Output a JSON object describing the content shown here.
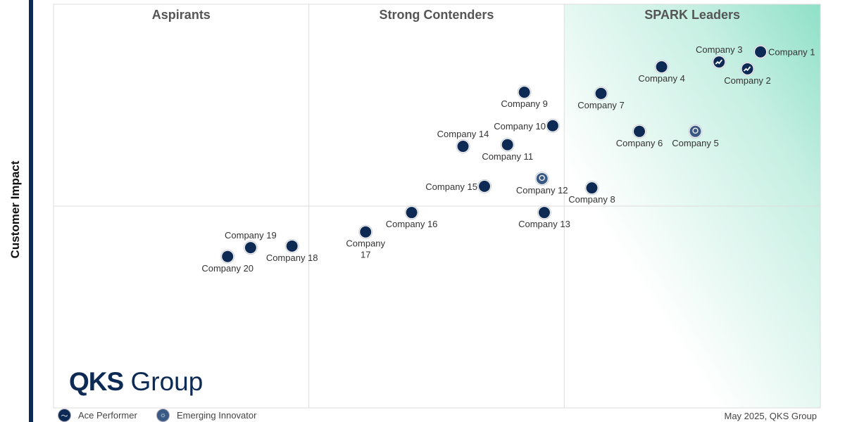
{
  "chart_data": {
    "type": "scatter",
    "title": "",
    "ylabel": "Customer Impact",
    "xlabel": "",
    "xlim": [
      0,
      100
    ],
    "ylim": [
      0,
      100
    ],
    "dividers": {
      "x": [
        33.3,
        66.6
      ],
      "y": 50
    },
    "quadrants": [
      "Aspirants",
      "Strong Contenders",
      "SPARK Leaders"
    ],
    "legend": [
      {
        "name": "Ace Performer",
        "icon": "trend-icon"
      },
      {
        "name": "Emerging Innovator",
        "icon": "lightbulb-icon"
      }
    ],
    "points": [
      {
        "name": "Company 1",
        "x": 92.2,
        "y": 88.2,
        "type": "plain",
        "label": "right"
      },
      {
        "name": "Company 2",
        "x": 90.5,
        "y": 84.0,
        "type": "ace",
        "label": "below"
      },
      {
        "name": "Company 3",
        "x": 86.8,
        "y": 85.7,
        "type": "ace",
        "label": "above"
      },
      {
        "name": "Company 4",
        "x": 79.3,
        "y": 84.5,
        "type": "plain",
        "label": "below"
      },
      {
        "name": "Company 5",
        "x": 83.7,
        "y": 68.5,
        "type": "innovator",
        "label": "below"
      },
      {
        "name": "Company 6",
        "x": 76.4,
        "y": 68.5,
        "type": "plain",
        "label": "below"
      },
      {
        "name": "Company 7",
        "x": 71.4,
        "y": 77.9,
        "type": "plain",
        "label": "below"
      },
      {
        "name": "Company 8",
        "x": 70.2,
        "y": 54.5,
        "type": "plain",
        "label": "below"
      },
      {
        "name": "Company 9",
        "x": 61.4,
        "y": 78.2,
        "type": "plain",
        "label": "below"
      },
      {
        "name": "Company 10",
        "x": 65.1,
        "y": 69.9,
        "type": "plain",
        "label": "left"
      },
      {
        "name": "Company 11",
        "x": 59.2,
        "y": 65.2,
        "type": "plain",
        "label": "below"
      },
      {
        "name": "Company 12",
        "x": 63.7,
        "y": 56.8,
        "type": "innovator",
        "label": "below"
      },
      {
        "name": "Company 13",
        "x": 64.0,
        "y": 48.4,
        "type": "plain",
        "label": "below"
      },
      {
        "name": "Company 14",
        "x": 53.4,
        "y": 64.8,
        "type": "plain",
        "label": "above"
      },
      {
        "name": "Company 15",
        "x": 56.2,
        "y": 54.9,
        "type": "plain",
        "label": "left"
      },
      {
        "name": "Company 16",
        "x": 46.7,
        "y": 48.4,
        "type": "plain",
        "label": "below"
      },
      {
        "name": "Company 17",
        "x": 40.7,
        "y": 43.6,
        "type": "plain",
        "label": "below2"
      },
      {
        "name": "Company 18",
        "x": 31.1,
        "y": 40.1,
        "type": "plain",
        "label": "below"
      },
      {
        "name": "Company 19",
        "x": 25.7,
        "y": 39.7,
        "type": "plain",
        "label": "above"
      },
      {
        "name": "Company 20",
        "x": 22.7,
        "y": 37.5,
        "type": "plain",
        "label": "below"
      }
    ]
  },
  "logo": {
    "bold": "QKS",
    "light": "Group"
  },
  "footer": "May  2025, QKS Group"
}
